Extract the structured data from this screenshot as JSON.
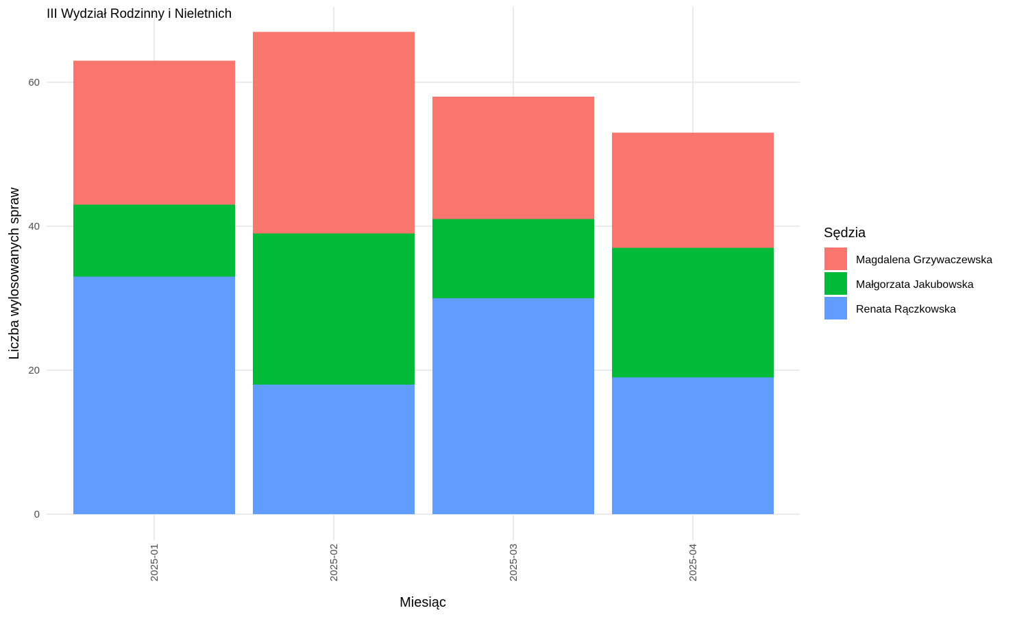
{
  "chart_data": {
    "type": "bar",
    "stacked": true,
    "title": "III Wydział Rodzinny i Nieletnich",
    "xlabel": "Miesiąc",
    "ylabel": "Liczba wylosowanych spraw",
    "categories": [
      "2025-01",
      "2025-02",
      "2025-03",
      "2025-04"
    ],
    "series": [
      {
        "name": "Renata Rączkowska",
        "color": "#619CFF",
        "values": [
          33,
          18,
          30,
          19
        ]
      },
      {
        "name": "Małgorzata Jakubowska",
        "color": "#00BA38",
        "values": [
          10,
          21,
          11,
          18
        ]
      },
      {
        "name": "Magdalena Grzywaczewska",
        "color": "#F8766D",
        "values": [
          20,
          28,
          17,
          16
        ]
      }
    ],
    "legend_order": [
      "Magdalena Grzywaczewska",
      "Małgorzata Jakubowska",
      "Renata Rączkowska"
    ],
    "legend_title": "Sędzia",
    "legend_position": "right",
    "yticks": [
      0,
      20,
      40,
      60
    ],
    "ylim": [
      0,
      70
    ],
    "grid": true
  }
}
